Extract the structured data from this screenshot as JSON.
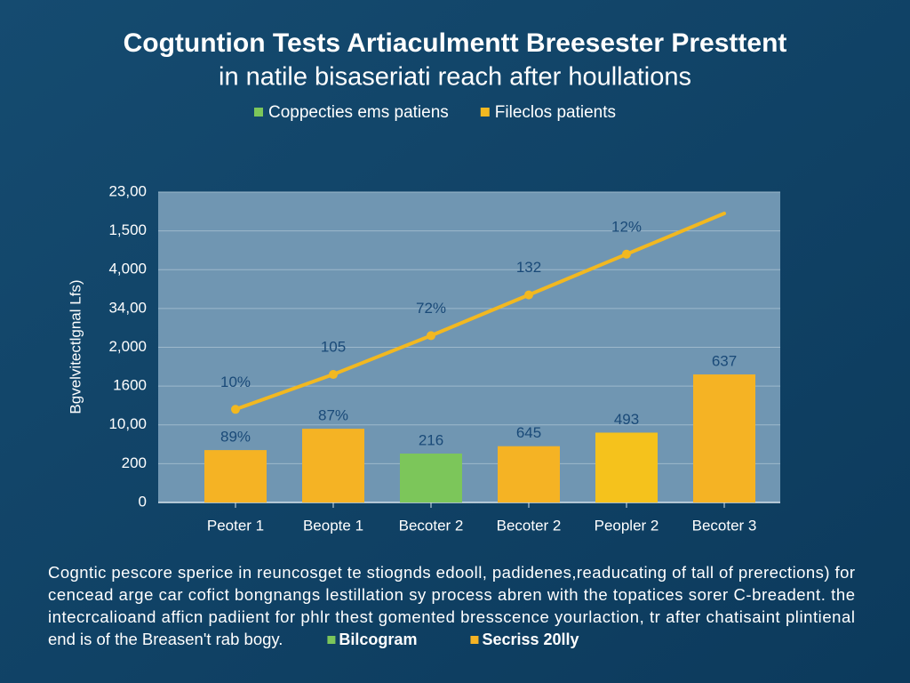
{
  "chart_data": {
    "type": "bar",
    "title": [
      "Cogtuntion Tests Artiaculmentt Breesester Presttent",
      "in natile bisaseriati reach after houllations"
    ],
    "y_label": "Bgvelvitectlgnal Lfs)",
    "categories": [
      "Peoter 1",
      "Beopte 1",
      "Becoter 2",
      "Becoter 2",
      "Peopler 2",
      "Becoter 3"
    ],
    "series": [
      {
        "name": "Coppecties ems patiens",
        "type": "bar",
        "color": "#7cc65a",
        "colors": [
          "#f5b324",
          "#f5b324",
          "#7cc65a",
          "#f5b324",
          "#f5c21c",
          "#f5b324"
        ],
        "values": [
          1.35,
          1.9,
          1.26,
          1.45,
          1.8,
          3.3
        ],
        "labels": [
          "89%",
          "87%",
          "216",
          "645",
          "493",
          "637"
        ]
      },
      {
        "name": "Fileclos patients",
        "type": "line",
        "color": "#f2b820",
        "values": [
          2.4,
          3.3,
          4.3,
          5.35,
          6.4,
          7.45
        ],
        "labels": [
          "10%",
          "105",
          "72%",
          "132",
          "12%",
          null
        ]
      }
    ],
    "ylim": [
      0,
      8
    ],
    "yticks": [
      {
        "value": 0,
        "label": "0"
      },
      {
        "value": 1,
        "label": "200"
      },
      {
        "value": 2,
        "label": "10,00"
      },
      {
        "value": 3,
        "label": "1600"
      },
      {
        "value": 4,
        "label": "2,000"
      },
      {
        "value": 5,
        "label": "34,00"
      },
      {
        "value": 6,
        "label": "4,000"
      },
      {
        "value": 7,
        "label": "1,500"
      },
      {
        "value": 8,
        "label": "23,00"
      }
    ],
    "grid": true,
    "caption": {
      "lines": [
        "Cogntic pescore sperice in reuncosget te stiognds edooll, padidenes,readucating of tall of prerections) for",
        "cencead arge car cofict bongnangs lestillation sy process abren with the topatices sorer C-breadent. the",
        "intecrcalioand afficn padiient for phlr thest gomented bresscence yourlaction, tr after chatisaint plintienal",
        "end is of the Breasen't rab bogy."
      ],
      "legend": [
        {
          "name": "Bilcogram",
          "color": "#7cc65a"
        },
        {
          "name": "Secriss 20lly",
          "color": "#f5b324"
        }
      ]
    }
  }
}
